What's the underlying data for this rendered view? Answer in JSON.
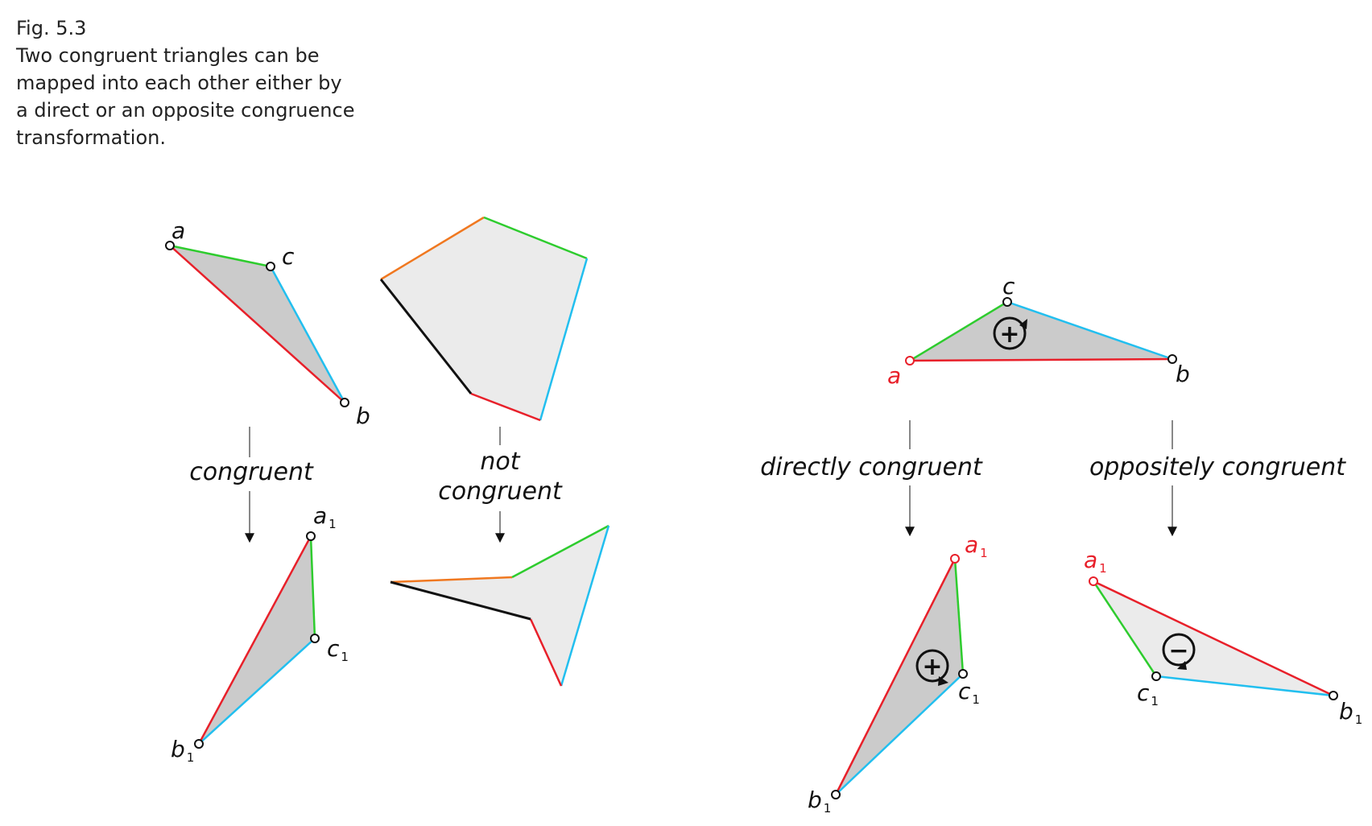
{
  "caption": {
    "fig_number": "Fig. 5.3",
    "lines": [
      "Two congruent triangles can be",
      "mapped into each other either by",
      "a direct or an opposite congruence",
      "transformation."
    ]
  },
  "left_panel": {
    "congruent_label": "congruent",
    "not_congruent_line1": "not",
    "not_congruent_line2": "congruent",
    "vertex_a": "a",
    "vertex_b": "b",
    "vertex_c": "c",
    "vertex_a1": "a",
    "vertex_b1": "b",
    "vertex_c1": "c",
    "subscript": "1"
  },
  "right_panel": {
    "directly_label": "directly congruent",
    "oppositely_label": "oppositely congruent",
    "vertex_a": "a",
    "vertex_b": "b",
    "vertex_c": "c",
    "vertex_a1": "a",
    "vertex_b1": "b",
    "vertex_c1": "c",
    "subscript": "1",
    "plus_sign": "+",
    "minus_sign": "−"
  },
  "colors": {
    "edge_ac": "#2ecc2e",
    "edge_ab": "#e8202a",
    "edge_bc": "#22bfef",
    "edge_orange": "#f07820",
    "edge_black": "#111111",
    "fill_dark": "#cbcbcb",
    "fill_light": "#ebebeb",
    "highlight_vertex": "#e8202a"
  }
}
